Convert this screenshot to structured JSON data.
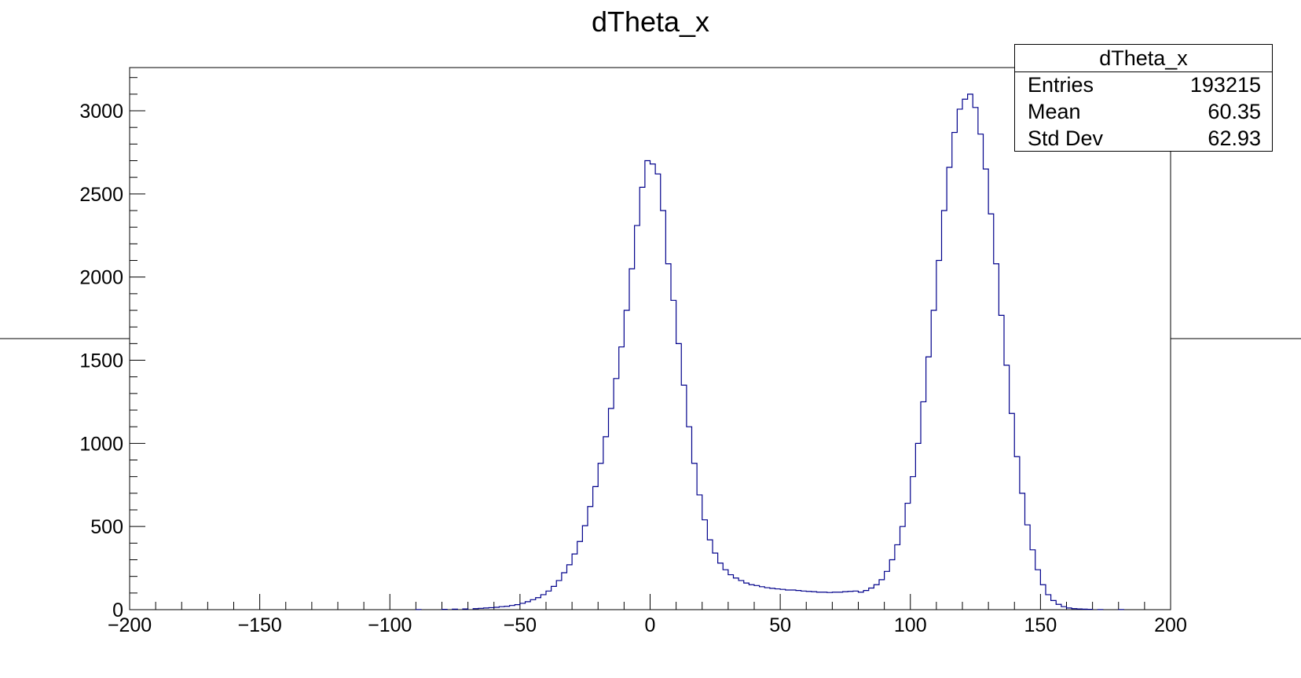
{
  "chart_data": {
    "type": "histogram",
    "title": "dTheta_x",
    "xlabel": "",
    "ylabel": "",
    "xlim": [
      -200,
      200
    ],
    "ylim": [
      0,
      3260
    ],
    "x_ticks": [
      -200,
      -150,
      -100,
      -50,
      0,
      50,
      100,
      150,
      200
    ],
    "x_tick_labels": [
      "−200",
      "−150",
      "−100",
      "−50",
      "0",
      "50",
      "100",
      "150",
      "200"
    ],
    "y_ticks": [
      0,
      500,
      1000,
      1500,
      2000,
      2500,
      3000
    ],
    "y_tick_labels": [
      "0",
      "500",
      "1000",
      "1500",
      "2000",
      "2500",
      "3000"
    ],
    "line_color": "#00008b",
    "bin_width": 2,
    "bins": [
      [
        -90,
        1
      ],
      [
        -80,
        2
      ],
      [
        -76,
        3
      ],
      [
        -72,
        4
      ],
      [
        -68,
        6
      ],
      [
        -66,
        8
      ],
      [
        -64,
        10
      ],
      [
        -62,
        12
      ],
      [
        -60,
        14
      ],
      [
        -58,
        18
      ],
      [
        -56,
        20
      ],
      [
        -54,
        25
      ],
      [
        -52,
        30
      ],
      [
        -50,
        38
      ],
      [
        -48,
        48
      ],
      [
        -46,
        60
      ],
      [
        -44,
        72
      ],
      [
        -42,
        90
      ],
      [
        -40,
        112
      ],
      [
        -38,
        140
      ],
      [
        -36,
        175
      ],
      [
        -34,
        222
      ],
      [
        -32,
        270
      ],
      [
        -30,
        335
      ],
      [
        -28,
        410
      ],
      [
        -26,
        505
      ],
      [
        -24,
        620
      ],
      [
        -22,
        740
      ],
      [
        -20,
        880
      ],
      [
        -18,
        1040
      ],
      [
        -16,
        1210
      ],
      [
        -14,
        1390
      ],
      [
        -12,
        1580
      ],
      [
        -10,
        1800
      ],
      [
        -8,
        2050
      ],
      [
        -6,
        2310
      ],
      [
        -4,
        2540
      ],
      [
        -2,
        2700
      ],
      [
        0,
        2680
      ],
      [
        2,
        2620
      ],
      [
        4,
        2400
      ],
      [
        6,
        2080
      ],
      [
        8,
        1860
      ],
      [
        10,
        1600
      ],
      [
        12,
        1350
      ],
      [
        14,
        1100
      ],
      [
        16,
        880
      ],
      [
        18,
        690
      ],
      [
        20,
        540
      ],
      [
        22,
        420
      ],
      [
        24,
        340
      ],
      [
        26,
        280
      ],
      [
        28,
        240
      ],
      [
        30,
        210
      ],
      [
        32,
        190
      ],
      [
        34,
        175
      ],
      [
        36,
        160
      ],
      [
        38,
        150
      ],
      [
        40,
        145
      ],
      [
        42,
        138
      ],
      [
        44,
        132
      ],
      [
        46,
        128
      ],
      [
        48,
        125
      ],
      [
        50,
        122
      ],
      [
        52,
        118
      ],
      [
        54,
        118
      ],
      [
        56,
        115
      ],
      [
        58,
        112
      ],
      [
        60,
        110
      ],
      [
        62,
        108
      ],
      [
        64,
        105
      ],
      [
        66,
        105
      ],
      [
        68,
        103
      ],
      [
        70,
        105
      ],
      [
        72,
        105
      ],
      [
        74,
        108
      ],
      [
        76,
        110
      ],
      [
        78,
        112
      ],
      [
        80,
        105
      ],
      [
        82,
        115
      ],
      [
        84,
        130
      ],
      [
        86,
        150
      ],
      [
        88,
        180
      ],
      [
        90,
        230
      ],
      [
        92,
        300
      ],
      [
        94,
        390
      ],
      [
        96,
        500
      ],
      [
        98,
        640
      ],
      [
        100,
        800
      ],
      [
        102,
        1000
      ],
      [
        104,
        1250
      ],
      [
        106,
        1520
      ],
      [
        108,
        1800
      ],
      [
        110,
        2100
      ],
      [
        112,
        2400
      ],
      [
        114,
        2660
      ],
      [
        116,
        2870
      ],
      [
        118,
        3010
      ],
      [
        120,
        3070
      ],
      [
        122,
        3100
      ],
      [
        124,
        3020
      ],
      [
        126,
        2860
      ],
      [
        128,
        2650
      ],
      [
        130,
        2380
      ],
      [
        132,
        2080
      ],
      [
        134,
        1770
      ],
      [
        136,
        1470
      ],
      [
        138,
        1180
      ],
      [
        140,
        920
      ],
      [
        142,
        700
      ],
      [
        144,
        510
      ],
      [
        146,
        360
      ],
      [
        148,
        240
      ],
      [
        150,
        150
      ],
      [
        152,
        90
      ],
      [
        154,
        55
      ],
      [
        156,
        32
      ],
      [
        158,
        18
      ],
      [
        160,
        10
      ],
      [
        162,
        6
      ],
      [
        164,
        4
      ],
      [
        166,
        3
      ],
      [
        168,
        2
      ],
      [
        172,
        1
      ],
      [
        180,
        1
      ]
    ]
  },
  "stats": {
    "title": "dTheta_x",
    "rows": [
      {
        "key": "Entries",
        "value": "193215"
      },
      {
        "key": "Mean",
        "value": "60.35"
      },
      {
        "key": "Std Dev",
        "value": "62.93"
      }
    ]
  }
}
